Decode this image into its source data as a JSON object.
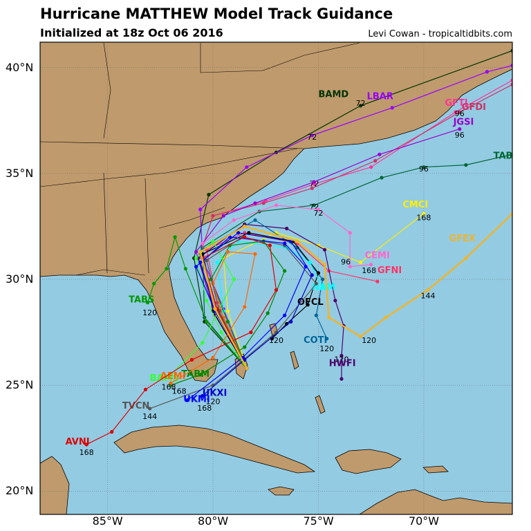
{
  "header": {
    "title": "Hurricane MATTHEW Model Track Guidance",
    "subtitle": "Initialized at 18z Oct 06 2016",
    "credit": "Levi Cowan - tropicaltidbits.com"
  },
  "colors": {
    "ocean": "#93cbe3",
    "land": "#bf9a6c",
    "border": "#000000",
    "grid": "#666666"
  },
  "axes": {
    "lon_labels": [
      "85°W",
      "80°W",
      "75°W",
      "70°W"
    ],
    "lat_labels": [
      "40°N",
      "35°N",
      "30°N",
      "25°N",
      "20°N"
    ],
    "lon_values": [
      -85,
      -80,
      -75,
      -70
    ],
    "lat_values": [
      40,
      35,
      30,
      25,
      20
    ],
    "lon_range": [
      -88.2,
      -65.8
    ],
    "lat_range": [
      18.9,
      41.2
    ]
  },
  "chart_data": {
    "type": "line",
    "tracks": [
      {
        "name": "BAMD",
        "color": "#003300",
        "label_at": [
          -75.0,
          38.6
        ],
        "points": [
          [
            -78.4,
            25.8
          ],
          [
            -80.4,
            28.0
          ],
          [
            -80.9,
            31.0
          ],
          [
            -80.2,
            34.0
          ],
          [
            -77.0,
            36.0
          ],
          [
            -73.0,
            38.2
          ],
          [
            -65.8,
            40.8
          ]
        ],
        "hours": [
          {
            "t": "72",
            "at": [
              -73.0,
              38.2
            ]
          }
        ]
      },
      {
        "name": "LBAR",
        "color": "#9900ff",
        "label_at": [
          -72.7,
          38.5
        ],
        "points": [
          [
            -78.4,
            25.8
          ],
          [
            -79.5,
            28.6
          ],
          [
            -80.5,
            31.0
          ],
          [
            -80.6,
            33.3
          ],
          [
            -78.4,
            35.3
          ],
          [
            -75.3,
            36.8
          ],
          [
            -71.5,
            38.1
          ],
          [
            -67.0,
            39.8
          ],
          [
            -65.8,
            40.1
          ]
        ],
        "hours": [
          {
            "t": "72",
            "at": [
              -75.3,
              36.6
            ]
          }
        ]
      },
      {
        "name": "GFTI",
        "color": "#ff3399",
        "label_at": [
          -69.0,
          38.2
        ],
        "points": [
          [
            -78.4,
            25.8
          ],
          [
            -79.8,
            28.5
          ],
          [
            -80.6,
            31.2
          ],
          [
            -80.0,
            33.0
          ],
          [
            -77.5,
            33.7
          ],
          [
            -75.2,
            34.5
          ],
          [
            -72.5,
            35.3
          ],
          [
            -68.5,
            37.9
          ],
          [
            -65.8,
            39.4
          ]
        ],
        "hours": [
          {
            "t": "72",
            "at": [
              -75.2,
              34.4
            ]
          }
        ]
      },
      {
        "name": "GFDI",
        "color": "#cc3366",
        "label_at": [
          -68.2,
          38.0
        ],
        "points": [
          [
            -78.4,
            25.8
          ],
          [
            -79.8,
            28.5
          ],
          [
            -80.6,
            31.2
          ],
          [
            -80.0,
            33.0
          ],
          [
            -77.6,
            33.6
          ],
          [
            -75.3,
            34.3
          ],
          [
            -72.3,
            35.6
          ],
          [
            -68.3,
            37.9
          ],
          [
            -65.8,
            39.2
          ]
        ],
        "hours": [
          {
            "t": "96",
            "at": [
              -68.3,
              37.7
            ]
          }
        ]
      },
      {
        "name": "JGSI",
        "color": "#9900cc",
        "label_at": [
          -68.6,
          37.3
        ],
        "points": [
          [
            -78.4,
            25.8
          ],
          [
            -79.9,
            28.3
          ],
          [
            -80.8,
            31.3
          ],
          [
            -79.5,
            33.0
          ],
          [
            -78.0,
            33.6
          ],
          [
            -75.2,
            34.6
          ],
          [
            -72.1,
            35.9
          ],
          [
            -68.3,
            37.1
          ]
        ],
        "hours": [
          {
            "t": "96",
            "at": [
              -68.3,
              36.7
            ]
          }
        ]
      },
      {
        "name": "TABD",
        "color": "#006633",
        "label_at": [
          -66.7,
          35.7
        ],
        "points": [
          [
            -78.4,
            25.8
          ],
          [
            -80.4,
            28.2
          ],
          [
            -80.5,
            31.5
          ],
          [
            -77.8,
            33.2
          ],
          [
            -75.2,
            33.5
          ],
          [
            -72.0,
            34.8
          ],
          [
            -70.0,
            35.3
          ],
          [
            -68.0,
            35.4
          ],
          [
            -65.8,
            35.9
          ]
        ],
        "hours": [
          {
            "t": "72",
            "at": [
              -75.2,
              33.3
            ]
          },
          {
            "t": "96",
            "at": [
              -70.0,
              35.1
            ]
          }
        ]
      },
      {
        "name": "CMCI",
        "color": "#ffee00",
        "label_at": [
          -71.0,
          33.4
        ],
        "points": [
          [
            -78.4,
            25.8
          ],
          [
            -79.3,
            28.5
          ],
          [
            -79.5,
            31.0
          ],
          [
            -77.0,
            32.2
          ],
          [
            -75.0,
            31.6
          ],
          [
            -73.0,
            30.8
          ],
          [
            -70.0,
            33.1
          ]
        ],
        "hours": [
          {
            "t": "168",
            "at": [
              -70.0,
              32.8
            ]
          }
        ]
      },
      {
        "name": "CEMI",
        "color": "#ff66cc",
        "label_at": [
          -72.8,
          31.0
        ],
        "points": [
          [
            -78.4,
            25.8
          ],
          [
            -80.0,
            28.7
          ],
          [
            -80.5,
            31.7
          ],
          [
            -79.0,
            32.8
          ],
          [
            -77.0,
            33.5
          ],
          [
            -75.0,
            33.3
          ],
          [
            -73.5,
            32.2
          ],
          [
            -73.5,
            30.6
          ],
          [
            -72.5,
            30.7
          ]
        ],
        "hours": [
          {
            "t": "72",
            "at": [
              -75.0,
              33.0
            ]
          },
          {
            "t": "96",
            "at": [
              -73.7,
              30.7
            ]
          },
          {
            "t": "168",
            "at": [
              -72.6,
              30.3
            ]
          }
        ]
      },
      {
        "name": "GFNI",
        "color": "#ff3366",
        "label_at": [
          -72.2,
          30.3
        ],
        "points": [
          [
            -78.4,
            25.8
          ],
          [
            -79.8,
            28.9
          ],
          [
            -80.3,
            31.4
          ],
          [
            -78.5,
            32.2
          ],
          [
            -76.0,
            31.7
          ],
          [
            -74.5,
            30.4
          ],
          [
            -72.2,
            29.9
          ]
        ],
        "hours": []
      },
      {
        "name": "HWFI",
        "color": "#4d006b",
        "label_at": [
          -74.5,
          25.9
        ],
        "points": [
          [
            -78.4,
            25.8
          ],
          [
            -79.9,
            28.6
          ],
          [
            -80.7,
            31.0
          ],
          [
            -78.5,
            32.6
          ],
          [
            -76.5,
            32.4
          ],
          [
            -74.7,
            31.4
          ],
          [
            -74.2,
            29.0
          ],
          [
            -73.8,
            27.8
          ],
          [
            -73.9,
            26.4
          ],
          [
            -73.9,
            25.3
          ]
        ],
        "hours": [
          {
            "t": "120",
            "at": [
              -73.9,
              26.1
            ]
          }
        ]
      },
      {
        "name": "COTI",
        "color": "#006699",
        "label_at": [
          -75.7,
          27.0
        ],
        "points": [
          [
            -78.4,
            25.8
          ],
          [
            -80.0,
            28.9
          ],
          [
            -80.5,
            31.4
          ],
          [
            -78.0,
            32.8
          ],
          [
            -76.0,
            31.5
          ],
          [
            -74.8,
            30.0
          ],
          [
            -75.1,
            28.3
          ],
          [
            -74.6,
            27.2
          ]
        ],
        "hours": [
          {
            "t": "120",
            "at": [
              -74.6,
              26.6
            ]
          }
        ]
      },
      {
        "name": "OFCL",
        "color": "#000000",
        "label_at": [
          -76.0,
          28.8
        ],
        "points": [
          [
            -78.4,
            25.8
          ],
          [
            -80.0,
            28.5
          ],
          [
            -80.5,
            31.2
          ],
          [
            -78.3,
            32.2
          ],
          [
            -76.2,
            31.8
          ],
          [
            -75.0,
            30.3
          ],
          [
            -75.5,
            28.8
          ],
          [
            -76.5,
            27.9
          ],
          [
            -77.2,
            27.2
          ]
        ],
        "hours": [
          {
            "t": "120",
            "at": [
              -77.0,
              27.0
            ]
          }
        ]
      },
      {
        "name": "NAM",
        "color": "#00ffff",
        "label_at": [
          -75.3,
          29.5
        ],
        "points": [
          [
            -78.4,
            25.8
          ],
          [
            -79.5,
            28.5
          ],
          [
            -79.8,
            30.8
          ],
          [
            -78.8,
            31.8
          ],
          [
            -76.5,
            31.5
          ],
          [
            -75.4,
            30.8
          ],
          [
            -74.8,
            29.6
          ]
        ],
        "hours": []
      },
      {
        "name": "TABS",
        "color": "#009900",
        "label_at": [
          -84.0,
          28.9
        ],
        "points": [
          [
            -78.4,
            25.8
          ],
          [
            -80.3,
            28.0
          ],
          [
            -81.3,
            30.5
          ],
          [
            -81.8,
            32.0
          ],
          [
            -82.2,
            30.5
          ],
          [
            -82.8,
            29.8
          ],
          [
            -83.1,
            28.9
          ]
        ],
        "hours": [
          {
            "t": "120",
            "at": [
              -83.0,
              28.3
            ]
          }
        ]
      },
      {
        "name": "TABM",
        "color": "#008800",
        "label_at": [
          -81.5,
          25.4
        ],
        "points": [
          [
            -78.4,
            25.8
          ],
          [
            -79.3,
            28.0
          ],
          [
            -80.1,
            30.0
          ],
          [
            -79.2,
            31.6
          ],
          [
            -77.6,
            31.8
          ],
          [
            -76.6,
            30.4
          ],
          [
            -77.4,
            28.4
          ],
          [
            -78.5,
            26.8
          ],
          [
            -80.6,
            25.5
          ],
          [
            -82.0,
            25.0
          ]
        ],
        "hours": [
          {
            "t": "168",
            "at": [
              -81.6,
              24.6
            ]
          }
        ]
      },
      {
        "name": "BAMS",
        "color": "#33ff33",
        "label_at": [
          -83.0,
          25.2
        ],
        "points": [
          [
            -78.4,
            25.8
          ],
          [
            -79.6,
            27.5
          ],
          [
            -80.3,
            29.0
          ],
          [
            -80.8,
            31.0
          ],
          [
            -80.0,
            31.8
          ],
          [
            -79.0,
            30.0
          ],
          [
            -80.5,
            27.0
          ],
          [
            -82.0,
            25.5
          ]
        ],
        "hours": []
      },
      {
        "name": "AEMI",
        "color": "#ff6600",
        "label_at": [
          -82.5,
          25.3
        ],
        "points": [
          [
            -78.4,
            25.8
          ],
          [
            -79.5,
            28.2
          ],
          [
            -80.0,
            29.8
          ],
          [
            -79.3,
            31.3
          ],
          [
            -78.0,
            31.2
          ],
          [
            -78.5,
            28.7
          ],
          [
            -80.0,
            26.3
          ],
          [
            -82.0,
            25.1
          ]
        ],
        "hours": [
          {
            "t": "168",
            "at": [
              -82.1,
              24.8
            ]
          }
        ]
      },
      {
        "name": "TVCN",
        "color": "#555555",
        "label_at": [
          -84.3,
          23.9
        ],
        "points": [
          [
            -78.4,
            25.8
          ],
          [
            -79.7,
            28.5
          ],
          [
            -80.3,
            30.9
          ],
          [
            -78.6,
            32.0
          ],
          [
            -76.6,
            31.6
          ],
          [
            -75.1,
            29.8
          ],
          [
            -77.0,
            27.5
          ],
          [
            -80.0,
            25.0
          ],
          [
            -83.0,
            23.9
          ]
        ],
        "hours": [
          {
            "t": "144",
            "at": [
              -83.0,
              23.4
            ]
          }
        ]
      },
      {
        "name": "UKXI",
        "color": "#0000cc",
        "label_at": [
          -80.5,
          24.5
        ],
        "points": [
          [
            -78.4,
            25.8
          ],
          [
            -79.9,
            28.5
          ],
          [
            -80.6,
            30.8
          ],
          [
            -78.8,
            32.2
          ],
          [
            -76.3,
            31.8
          ],
          [
            -75.3,
            30.2
          ],
          [
            -76.3,
            28.0
          ],
          [
            -78.5,
            26.2
          ],
          [
            -80.5,
            24.5
          ]
        ],
        "hours": [
          {
            "t": "120",
            "at": [
              -80.0,
              24.1
            ]
          }
        ]
      },
      {
        "name": "UKMI",
        "color": "#0000ff",
        "label_at": [
          -81.4,
          24.2
        ],
        "points": [
          [
            -78.4,
            25.8
          ],
          [
            -79.9,
            28.5
          ],
          [
            -80.8,
            30.6
          ],
          [
            -79.2,
            32.0
          ],
          [
            -76.6,
            31.7
          ],
          [
            -75.6,
            30.6
          ],
          [
            -76.6,
            28.3
          ],
          [
            -78.6,
            26.3
          ],
          [
            -81.2,
            24.3
          ]
        ],
        "hours": [
          {
            "t": "168",
            "at": [
              -80.4,
              23.8
            ]
          }
        ]
      },
      {
        "name": "AVNI",
        "color": "#dd0000",
        "label_at": [
          -87.0,
          22.2
        ],
        "points": [
          [
            -78.4,
            25.8
          ],
          [
            -79.8,
            28.6
          ],
          [
            -80.5,
            31.0
          ],
          [
            -78.5,
            32.0
          ],
          [
            -77.3,
            31.6
          ],
          [
            -77.0,
            29.5
          ],
          [
            -78.2,
            27.5
          ],
          [
            -81.0,
            26.2
          ],
          [
            -83.2,
            24.8
          ],
          [
            -84.8,
            22.8
          ],
          [
            -86.0,
            22.2
          ]
        ],
        "hours": [
          {
            "t": "168",
            "at": [
              -86.0,
              21.7
            ]
          }
        ]
      },
      {
        "name": "GFEX",
        "color": "#f0b429",
        "label_at": [
          -68.8,
          31.8
        ],
        "points": [
          [
            -78.4,
            25.8
          ],
          [
            -79.9,
            28.6
          ],
          [
            -80.6,
            31.3
          ],
          [
            -78.5,
            32.5
          ],
          [
            -76.0,
            31.8
          ],
          [
            -74.7,
            30.7
          ],
          [
            -74.5,
            28.2
          ],
          [
            -73.0,
            27.3
          ],
          [
            -71.8,
            28.2
          ],
          [
            -69.8,
            29.5
          ],
          [
            -68.0,
            31.0
          ],
          [
            -65.8,
            33.1
          ]
        ],
        "hours": [
          {
            "t": "120",
            "at": [
              -72.6,
              27.0
            ]
          },
          {
            "t": "144",
            "at": [
              -69.8,
              29.1
            ]
          }
        ]
      }
    ]
  }
}
